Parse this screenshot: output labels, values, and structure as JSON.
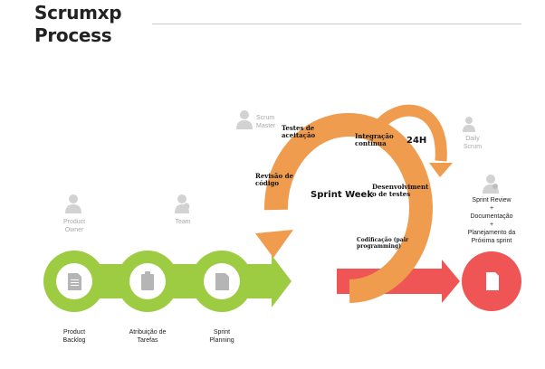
{
  "title": {
    "line1": "Scrumxp",
    "line2": "Process"
  },
  "colors": {
    "green": "#9dcc43",
    "orange": "#ef9c4f",
    "red": "#ee5554",
    "grey": "#b5b5b5"
  },
  "roles": {
    "product_owner": {
      "line1": "Product",
      "line2": "Owner",
      "icon": "person-icon"
    },
    "team": {
      "label": "Team",
      "icon": "team-icon"
    },
    "scrum_master": {
      "line1": "Scrum",
      "line2": "Master",
      "icon": "person-icon"
    },
    "daily_scrum": {
      "line1": "Daily",
      "line2": "Scrum",
      "icon": "team-icon"
    },
    "review_owner": {
      "icon": "person-icon"
    }
  },
  "stages": [
    {
      "line1": "Product",
      "line2": "Backlog",
      "icon": "document-icon"
    },
    {
      "line1": "Atribuição de",
      "line2": "Tarefas",
      "icon": "clipboard-icon"
    },
    {
      "line1": "Sprint",
      "line2": "Planning",
      "icon": "document-icon"
    }
  ],
  "sprint": {
    "label": "Sprint Week",
    "daily_label": "24H",
    "activities": {
      "testes": {
        "line1": "Testes de",
        "line2": "aceitação"
      },
      "integracao": {
        "line1": "Integração",
        "line2": "contínua"
      },
      "revisao": {
        "line1": "Revisão de",
        "line2": "código"
      },
      "desenvolvimento": {
        "line1": "Desenvolviment",
        "line2": "o de testes"
      },
      "codificacao": {
        "line1": "Codificação (pair",
        "line2": "programming)"
      }
    }
  },
  "review": {
    "line1": "Sprint Review",
    "line2": "+",
    "line3": "Documentação",
    "line4": "+",
    "line5": "Planejamento da",
    "line6": "Próxima sprint",
    "icon": "document-icon"
  }
}
